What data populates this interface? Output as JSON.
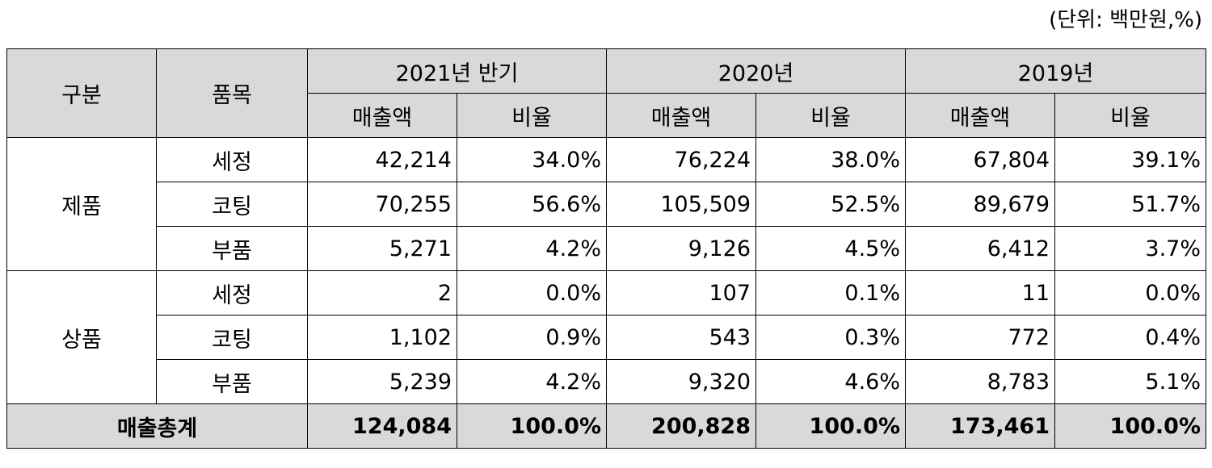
{
  "unit_note": "(단위: 백만원,%)",
  "table": {
    "headers": {
      "category": "구분",
      "item": "품목",
      "periods": [
        "2021년 반기",
        "2020년",
        "2019년"
      ],
      "subheaders": [
        "매출액",
        "비율",
        "매출액",
        "비율",
        "매출액",
        "비율"
      ]
    },
    "groups": [
      {
        "label": "제품",
        "rows": [
          {
            "item": "세정",
            "cells": [
              "42,214",
              "34.0%",
              "76,224",
              "38.0%",
              "67,804",
              "39.1%"
            ]
          },
          {
            "item": "코팅",
            "cells": [
              "70,255",
              "56.6%",
              "105,509",
              "52.5%",
              "89,679",
              "51.7%"
            ]
          },
          {
            "item": "부품",
            "cells": [
              "5,271",
              "4.2%",
              "9,126",
              "4.5%",
              "6,412",
              "3.7%"
            ]
          }
        ]
      },
      {
        "label": "상품",
        "rows": [
          {
            "item": "세정",
            "cells": [
              "2",
              "0.0%",
              "107",
              "0.1%",
              "11",
              "0.0%"
            ]
          },
          {
            "item": "코팅",
            "cells": [
              "1,102",
              "0.9%",
              "543",
              "0.3%",
              "772",
              "0.4%"
            ]
          },
          {
            "item": "부품",
            "cells": [
              "5,239",
              "4.2%",
              "9,320",
              "4.6%",
              "8,783",
              "5.1%"
            ]
          }
        ]
      }
    ],
    "total": {
      "label": "매출총계",
      "cells": [
        "124,084",
        "100.0%",
        "200,828",
        "100.0%",
        "173,461",
        "100.0%"
      ]
    }
  }
}
